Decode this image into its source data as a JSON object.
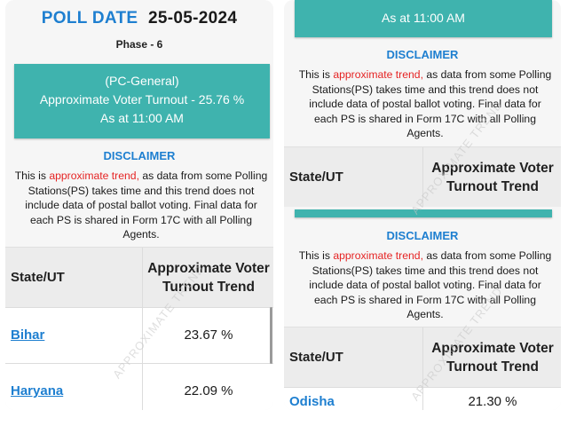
{
  "left": {
    "poll_date_label": "POLL DATE",
    "poll_date_value": "25-05-2024",
    "phase": "Phase - 6",
    "banner": {
      "line1": "(PC-General)",
      "line2": "Approximate Voter Turnout - 25.76 %",
      "line3": "As at 11:00 AM"
    },
    "disclaimer_title": "DISCLAIMER",
    "disclaimer": {
      "before": "This is ",
      "highlight": "approximate trend,",
      "after": " as data from some Polling Stations(PS) takes time and this trend does not include data of postal ballot voting. Final data for each PS is shared in Form 17C with all Polling Agents."
    },
    "table": {
      "col_state": "State/UT",
      "col_trend": "Approximate Voter Turnout Trend",
      "rows": [
        {
          "state": "Bihar",
          "value": "23.67 %"
        },
        {
          "state": "Haryana",
          "value": "22.09 %"
        }
      ]
    },
    "watermark": "APPROXIMATE TREND"
  },
  "right": {
    "banner_time": "As at 11:00 AM",
    "disclaimer_title": "DISCLAIMER",
    "disclaimer": {
      "before": "This is ",
      "highlight": "approximate trend,",
      "after": " as data from some Polling Stations(PS) takes time and this trend does not include data of postal ballot voting. Final data for each PS is shared in Form 17C with all Polling Agents."
    },
    "table_top": {
      "col_state": "State/UT",
      "col_trend": "Approximate Voter Turnout Trend"
    },
    "disclaimer2_title": "DISCLAIMER",
    "disclaimer2": {
      "before": "This is ",
      "highlight": "approximate trend,",
      "after": " as data from some Polling Stations(PS) takes time and this trend does not include data of postal ballot voting. Final data for each PS is shared in Form 17C with all Polling Agents."
    },
    "table_bottom": {
      "col_state": "State/UT",
      "col_trend": "Approximate Voter Turnout Trend",
      "rows": [
        {
          "state": "Odisha",
          "value": "21.30 %"
        }
      ]
    },
    "watermark": "APPROXIMATE TREND"
  },
  "colors": {
    "accent_blue": "#1e7fd0",
    "teal": "#3fb3ae",
    "highlight_red": "#e52424"
  }
}
